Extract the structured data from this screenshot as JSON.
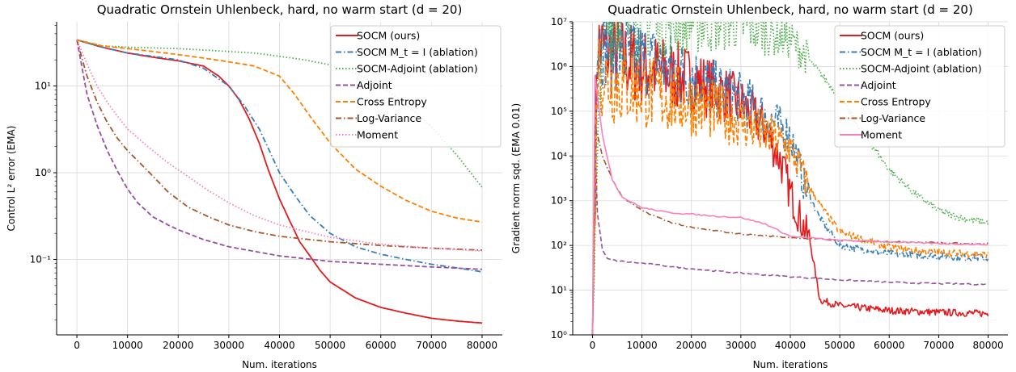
{
  "chart_data": [
    {
      "type": "line",
      "title": "Quadratic Ornstein Uhlenbeck, hard, no warm start (d = 20)",
      "xlabel": "Num. iterations",
      "ylabel": "Control L² error (EMA)",
      "yscale": "log",
      "xlim": [
        -4000,
        84000
      ],
      "ylim": [
        0.0135,
        55
      ],
      "xticks": [
        0,
        10000,
        20000,
        30000,
        40000,
        50000,
        60000,
        70000,
        80000
      ],
      "yticks": [
        {
          "value": 0.1,
          "label": "10⁻¹"
        },
        {
          "value": 1,
          "label": "10⁰"
        },
        {
          "value": 10,
          "label": "10¹"
        }
      ],
      "grid": true,
      "legend_position": "top-right",
      "series": [
        {
          "name": "SOCM (ours)",
          "color": "#e41a1c",
          "style": "solid",
          "x": [
            0,
            5000,
            10000,
            15000,
            20000,
            25000,
            28000,
            30000,
            32000,
            34000,
            36000,
            38000,
            40000,
            42000,
            44000,
            46000,
            48000,
            50000,
            55000,
            60000,
            65000,
            70000,
            75000,
            80000
          ],
          "y": [
            34,
            28,
            24,
            21.5,
            19.5,
            17,
            13,
            10,
            7,
            4.2,
            2.2,
            1.0,
            0.5,
            0.28,
            0.16,
            0.11,
            0.075,
            0.055,
            0.036,
            0.028,
            0.024,
            0.021,
            0.0195,
            0.0185
          ]
        },
        {
          "name": "SOCM M_t = I (ablation)",
          "color": "#377eb8",
          "style": "dashdot",
          "x": [
            0,
            5000,
            10000,
            15000,
            20000,
            25000,
            30000,
            33000,
            36000,
            38000,
            40000,
            43000,
            46000,
            50000,
            55000,
            60000,
            65000,
            70000,
            75000,
            80000
          ],
          "y": [
            34,
            28,
            24,
            22,
            20,
            16,
            10,
            6,
            3.2,
            1.8,
            1.0,
            0.55,
            0.32,
            0.2,
            0.14,
            0.115,
            0.1,
            0.088,
            0.08,
            0.072
          ]
        },
        {
          "name": "SOCM-Adjoint (ablation)",
          "color": "#4daf4a",
          "style": "dotted",
          "x": [
            0,
            5000,
            10000,
            15000,
            20000,
            25000,
            30000,
            35000,
            40000,
            45000,
            50000,
            55000,
            60000,
            65000,
            70000,
            75000,
            80000
          ],
          "y": [
            34,
            29,
            28,
            27.5,
            27,
            26,
            25,
            24,
            22,
            20,
            17.5,
            14,
            10,
            6.2,
            3.4,
            1.6,
            0.68
          ]
        },
        {
          "name": "Adjoint",
          "color": "#984ea3",
          "style": "dashed",
          "x": [
            0,
            2000,
            4000,
            6000,
            8000,
            10000,
            12000,
            15000,
            18000,
            20000,
            25000,
            30000,
            40000,
            50000,
            60000,
            70000,
            80000
          ],
          "y": [
            34,
            8,
            3.5,
            1.8,
            1.05,
            0.65,
            0.45,
            0.31,
            0.25,
            0.22,
            0.17,
            0.14,
            0.11,
            0.095,
            0.088,
            0.082,
            0.077
          ]
        },
        {
          "name": "Cross Entropy",
          "color": "#ff7f00",
          "style": "dashed",
          "x": [
            0,
            5000,
            10000,
            15000,
            20000,
            25000,
            30000,
            35000,
            40000,
            43000,
            46000,
            50000,
            55000,
            60000,
            65000,
            70000,
            75000,
            80000
          ],
          "y": [
            34,
            29,
            27,
            25,
            23,
            21,
            19,
            17,
            13,
            8,
            4.5,
            2.2,
            1.1,
            0.7,
            0.48,
            0.36,
            0.3,
            0.27
          ]
        },
        {
          "name": "Log-Variance",
          "color": "#a65628",
          "style": "dashdot",
          "x": [
            0,
            2000,
            4000,
            6000,
            8000,
            10000,
            14000,
            18000,
            22000,
            26000,
            30000,
            35000,
            40000,
            50000,
            60000,
            70000,
            80000
          ],
          "y": [
            34,
            13,
            6.5,
            3.8,
            2.5,
            1.8,
            1.05,
            0.6,
            0.4,
            0.31,
            0.25,
            0.21,
            0.185,
            0.16,
            0.145,
            0.135,
            0.128
          ]
        },
        {
          "name": "Moment",
          "color": "#f781bf",
          "style": "dotted",
          "x": [
            0,
            2000,
            4000,
            6000,
            8000,
            10000,
            14000,
            18000,
            22000,
            26000,
            30000,
            35000,
            40000,
            50000,
            60000,
            70000,
            80000
          ],
          "y": [
            34,
            18,
            10,
            6.5,
            4.5,
            3.2,
            2.0,
            1.3,
            0.9,
            0.62,
            0.45,
            0.32,
            0.25,
            0.18,
            0.15,
            0.135,
            0.125
          ]
        }
      ]
    },
    {
      "type": "line",
      "title": "Quadratic Ornstein Uhlenbeck, hard, no warm start (d = 20)",
      "xlabel": "Num. iterations",
      "ylabel": "Gradient norm sqd. (EMA 0.01)",
      "yscale": "log",
      "xlim": [
        -4000,
        84000
      ],
      "ylim": [
        1,
        10000000
      ],
      "xticks": [
        0,
        10000,
        20000,
        30000,
        40000,
        50000,
        60000,
        70000,
        80000
      ],
      "yticks": [
        {
          "value": 1,
          "label": "10⁰"
        },
        {
          "value": 10,
          "label": "10¹"
        },
        {
          "value": 100,
          "label": "10²"
        },
        {
          "value": 1000,
          "label": "10³"
        },
        {
          "value": 10000,
          "label": "10⁴"
        },
        {
          "value": 100000,
          "label": "10⁵"
        },
        {
          "value": 1000000,
          "label": "10⁶"
        },
        {
          "value": 10000000,
          "label": "10⁷"
        }
      ],
      "grid": true,
      "legend_position": "top-right",
      "series": [
        {
          "name": "SOCM (ours)",
          "color": "#e41a1c",
          "style": "solid",
          "noisy": true,
          "x": [
            0,
            1000,
            3000,
            6000,
            10000,
            15000,
            20000,
            25000,
            30000,
            35000,
            38000,
            40000,
            42000,
            44000,
            46000,
            50000,
            60000,
            70000,
            80000
          ],
          "y": [
            1,
            3000000,
            2000000,
            1500000,
            1000000,
            700000,
            500000,
            300000,
            150000,
            40000,
            8000,
            1500,
            400,
            120,
            6,
            4.5,
            3.5,
            3.2,
            3
          ]
        },
        {
          "name": "SOCM M_t = I (ablation)",
          "color": "#377eb8",
          "style": "dashdot",
          "noisy": true,
          "x": [
            0,
            1000,
            3000,
            6000,
            10000,
            15000,
            20000,
            25000,
            30000,
            35000,
            40000,
            43000,
            46000,
            50000,
            60000,
            70000,
            80000
          ],
          "y": [
            1,
            4000000,
            3000000,
            2000000,
            1500000,
            1000000,
            600000,
            300000,
            200000,
            80000,
            30000,
            2000,
            400,
            100,
            65,
            58,
            52
          ]
        },
        {
          "name": "SOCM-Adjoint (ablation)",
          "color": "#4daf4a",
          "style": "dotted",
          "noisy": true,
          "x": [
            0,
            2000,
            10000,
            20000,
            30000,
            40000,
            45000,
            50000,
            55000,
            60000,
            65000,
            70000,
            75000,
            80000
          ],
          "y": [
            1,
            10000000,
            10000000,
            10000000,
            9000000,
            4000000,
            1000000,
            200000,
            30000,
            5000,
            1500,
            600,
            400,
            320
          ]
        },
        {
          "name": "Adjoint",
          "color": "#984ea3",
          "style": "dashed",
          "noisy": false,
          "x": [
            0,
            300,
            1000,
            2000,
            3000,
            5000,
            10000,
            20000,
            30000,
            40000,
            50000,
            60000,
            70000,
            80000
          ],
          "y": [
            1,
            100000,
            500,
            80,
            50,
            45,
            40,
            30,
            24,
            20,
            17,
            15,
            14,
            13.5
          ]
        },
        {
          "name": "Cross Entropy",
          "color": "#ff7f00",
          "style": "dashed",
          "noisy": true,
          "x": [
            0,
            1000,
            3000,
            6000,
            10000,
            15000,
            20000,
            25000,
            30000,
            35000,
            40000,
            43000,
            46000,
            50000,
            60000,
            70000,
            80000
          ],
          "y": [
            1,
            1000000,
            500000,
            400000,
            300000,
            200000,
            150000,
            100000,
            60000,
            30000,
            15000,
            3000,
            800,
            200,
            90,
            70,
            62
          ]
        },
        {
          "name": "Log-Variance",
          "color": "#a65628",
          "style": "dashdot",
          "noisy": false,
          "x": [
            0,
            300,
            1000,
            2000,
            4000,
            6000,
            10000,
            15000,
            20000,
            30000,
            40000,
            50000,
            60000,
            70000,
            80000
          ],
          "y": [
            1,
            60000,
            30000,
            10000,
            3000,
            1200,
            600,
            350,
            250,
            180,
            150,
            130,
            120,
            115,
            110
          ]
        },
        {
          "name": "Moment",
          "color": "#f781bf",
          "style": "solid",
          "noisy": false,
          "x": [
            0,
            300,
            1000,
            2000,
            4000,
            6000,
            10000,
            15000,
            20000,
            25000,
            30000,
            35000,
            40000,
            50000,
            60000,
            70000,
            80000
          ],
          "y": [
            1,
            1000000,
            200000,
            30000,
            3000,
            1200,
            700,
            550,
            500,
            450,
            420,
            300,
            160,
            130,
            120,
            110,
            105
          ]
        }
      ]
    }
  ]
}
